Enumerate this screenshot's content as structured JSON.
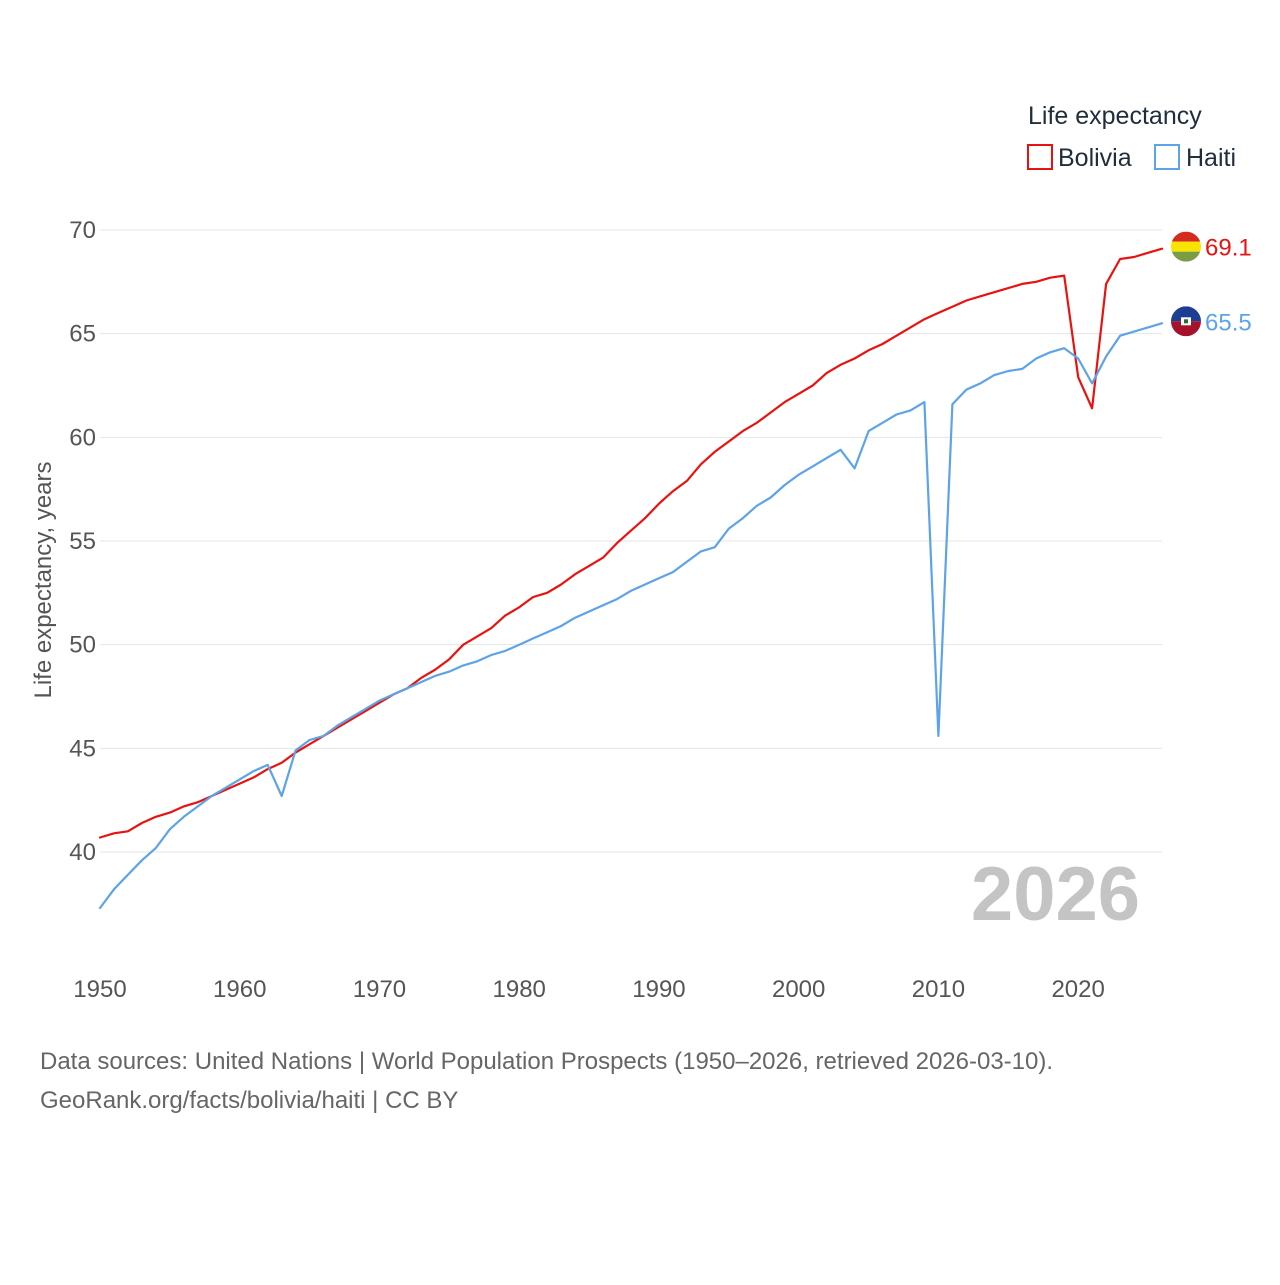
{
  "chart_data": {
    "type": "line",
    "title": "",
    "xlabel": "",
    "ylabel": "Life expectancy, years",
    "xlim": [
      1950,
      2026
    ],
    "ylim": [
      35,
      70
    ],
    "yticks": [
      40,
      45,
      50,
      55,
      60,
      65,
      70
    ],
    "xticks": [
      1950,
      1960,
      1970,
      1980,
      1990,
      2000,
      2010,
      2020
    ],
    "grid": true,
    "legend": {
      "title": "Life expectancy",
      "placement": "top-right"
    },
    "year_label": "2026",
    "x": [
      1950,
      1951,
      1952,
      1953,
      1954,
      1955,
      1956,
      1957,
      1958,
      1959,
      1960,
      1961,
      1962,
      1963,
      1964,
      1965,
      1966,
      1967,
      1968,
      1969,
      1970,
      1971,
      1972,
      1973,
      1974,
      1975,
      1976,
      1977,
      1978,
      1979,
      1980,
      1981,
      1982,
      1983,
      1984,
      1985,
      1986,
      1987,
      1988,
      1989,
      1990,
      1991,
      1992,
      1993,
      1994,
      1995,
      1996,
      1997,
      1998,
      1999,
      2000,
      2001,
      2002,
      2003,
      2004,
      2005,
      2006,
      2007,
      2008,
      2009,
      2010,
      2011,
      2012,
      2013,
      2014,
      2015,
      2016,
      2017,
      2018,
      2019,
      2020,
      2021,
      2022,
      2023,
      2024,
      2025,
      2026
    ],
    "series": [
      {
        "name": "Bolivia",
        "color": "#e8130f",
        "end_value": "69.1",
        "values": [
          40.7,
          40.9,
          41.0,
          41.4,
          41.7,
          41.9,
          42.2,
          42.4,
          42.7,
          43.0,
          43.3,
          43.6,
          44.0,
          44.3,
          44.8,
          45.2,
          45.6,
          46.0,
          46.4,
          46.8,
          47.2,
          47.6,
          47.9,
          48.4,
          48.8,
          49.3,
          50.0,
          50.4,
          50.8,
          51.4,
          51.8,
          52.3,
          52.5,
          52.9,
          53.4,
          53.8,
          54.2,
          54.9,
          55.5,
          56.1,
          56.8,
          57.4,
          57.9,
          58.7,
          59.3,
          59.8,
          60.3,
          60.7,
          61.2,
          61.7,
          62.1,
          62.5,
          63.1,
          63.5,
          63.8,
          64.2,
          64.5,
          64.9,
          65.3,
          65.7,
          66.0,
          66.3,
          66.6,
          66.8,
          67.0,
          67.2,
          67.4,
          67.5,
          67.7,
          67.8,
          62.9,
          61.4,
          67.4,
          68.6,
          68.7,
          68.9,
          69.1
        ]
      },
      {
        "name": "Haiti",
        "color": "#5da3e8",
        "end_value": "65.5",
        "values": [
          37.3,
          38.2,
          38.9,
          39.6,
          40.2,
          41.1,
          41.7,
          42.2,
          42.7,
          43.1,
          43.5,
          43.9,
          44.2,
          42.7,
          44.9,
          45.4,
          45.6,
          46.1,
          46.5,
          46.9,
          47.3,
          47.6,
          47.9,
          48.2,
          48.5,
          48.7,
          49.0,
          49.2,
          49.5,
          49.7,
          50.0,
          50.3,
          50.6,
          50.9,
          51.3,
          51.6,
          51.9,
          52.2,
          52.6,
          52.9,
          53.2,
          53.5,
          54.0,
          54.5,
          54.7,
          55.6,
          56.1,
          56.7,
          57.1,
          57.7,
          58.2,
          58.6,
          59.0,
          59.4,
          58.5,
          60.3,
          60.7,
          61.1,
          61.3,
          61.7,
          45.6,
          61.6,
          62.3,
          62.6,
          63.0,
          63.2,
          63.3,
          63.8,
          64.1,
          64.3,
          63.8,
          62.6,
          63.9,
          64.9,
          65.1,
          65.3,
          65.5
        ]
      }
    ]
  },
  "sources": {
    "line1": "Data sources: United Nations | World Population Prospects (1950–2026, retrieved 2026-03-10).",
    "line2": "GeoRank.org/facts/bolivia/haiti | CC BY"
  },
  "flags": {
    "bolivia": "bolivia-flag-icon",
    "haiti": "haiti-flag-icon"
  }
}
